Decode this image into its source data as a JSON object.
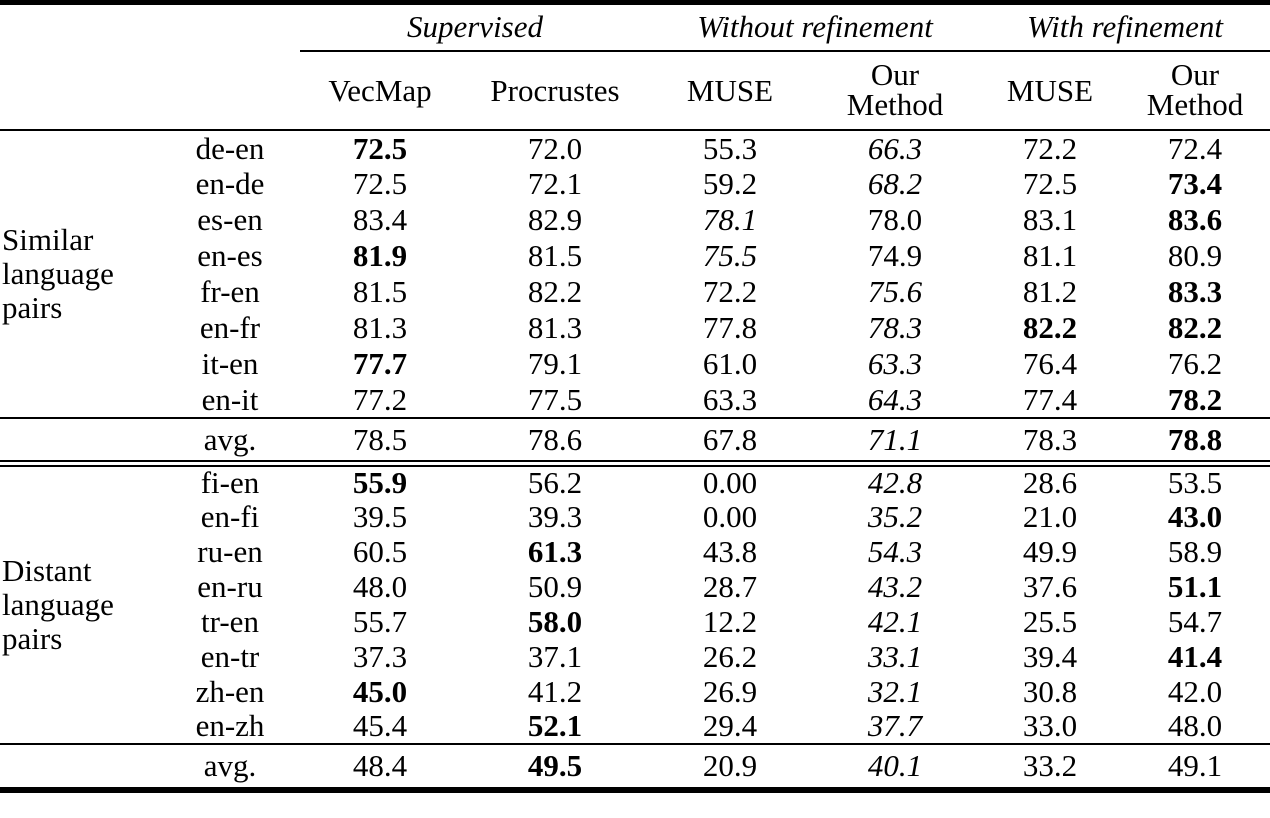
{
  "table": {
    "col_groups": [
      {
        "label": "Supervised"
      },
      {
        "label": "Without refinement"
      },
      {
        "label": "With refinement"
      }
    ],
    "headers": [
      "VecMap",
      "Procrustes",
      "MUSE",
      "Our Method",
      "MUSE",
      "Our Method"
    ],
    "sections": [
      {
        "group_label": "Similar language pairs",
        "rows": [
          {
            "pair": "de-en",
            "values": [
              "72.5",
              "72.0",
              "55.3",
              "66.3",
              "72.2",
              "72.4"
            ],
            "styles": [
              "b",
              "",
              "",
              "i",
              "",
              ""
            ]
          },
          {
            "pair": "en-de",
            "values": [
              "72.5",
              "72.1",
              "59.2",
              "68.2",
              "72.5",
              "73.4"
            ],
            "styles": [
              "",
              "",
              "",
              "i",
              "",
              "b"
            ]
          },
          {
            "pair": "es-en",
            "values": [
              "83.4",
              "82.9",
              "78.1",
              "78.0",
              "83.1",
              "83.6"
            ],
            "styles": [
              "",
              "",
              "i",
              "",
              "",
              "b"
            ]
          },
          {
            "pair": "en-es",
            "values": [
              "81.9",
              "81.5",
              "75.5",
              "74.9",
              "81.1",
              "80.9"
            ],
            "styles": [
              "b",
              "",
              "i",
              "",
              "",
              ""
            ]
          },
          {
            "pair": "fr-en",
            "values": [
              "81.5",
              "82.2",
              "72.2",
              "75.6",
              "81.2",
              "83.3"
            ],
            "styles": [
              "",
              "",
              "",
              "i",
              "",
              "b"
            ]
          },
          {
            "pair": "en-fr",
            "values": [
              "81.3",
              "81.3",
              "77.8",
              "78.3",
              "82.2",
              "82.2"
            ],
            "styles": [
              "",
              "",
              "",
              "i",
              "b",
              "b"
            ]
          },
          {
            "pair": "it-en",
            "values": [
              "77.7",
              "79.1",
              "61.0",
              "63.3",
              "76.4",
              "76.2"
            ],
            "styles": [
              "b",
              "",
              "",
              "i",
              "",
              ""
            ]
          },
          {
            "pair": "en-it",
            "values": [
              "77.2",
              "77.5",
              "63.3",
              "64.3",
              "77.4",
              "78.2"
            ],
            "styles": [
              "",
              "",
              "",
              "i",
              "",
              "b"
            ]
          }
        ],
        "avg": {
          "label": "avg.",
          "values": [
            "78.5",
            "78.6",
            "67.8",
            "71.1",
            "78.3",
            "78.8"
          ],
          "styles": [
            "",
            "",
            "",
            "i",
            "",
            "b"
          ]
        }
      },
      {
        "group_label": "Distant language pairs",
        "rows": [
          {
            "pair": "fi-en",
            "values": [
              "55.9",
              "56.2",
              "0.00",
              "42.8",
              "28.6",
              "53.5"
            ],
            "styles": [
              "b",
              "",
              "",
              "i",
              "",
              ""
            ]
          },
          {
            "pair": "en-fi",
            "values": [
              "39.5",
              "39.3",
              "0.00",
              "35.2",
              "21.0",
              "43.0"
            ],
            "styles": [
              "",
              "",
              "",
              "i",
              "",
              "b"
            ]
          },
          {
            "pair": "ru-en",
            "values": [
              "60.5",
              "61.3",
              "43.8",
              "54.3",
              "49.9",
              "58.9"
            ],
            "styles": [
              "",
              "b",
              "",
              "i",
              "",
              ""
            ]
          },
          {
            "pair": "en-ru",
            "values": [
              "48.0",
              "50.9",
              "28.7",
              "43.2",
              "37.6",
              "51.1"
            ],
            "styles": [
              "",
              "",
              "",
              "i",
              "",
              "b"
            ]
          },
          {
            "pair": "tr-en",
            "values": [
              "55.7",
              "58.0",
              "12.2",
              "42.1",
              "25.5",
              "54.7"
            ],
            "styles": [
              "",
              "b",
              "",
              "i",
              "",
              ""
            ]
          },
          {
            "pair": "en-tr",
            "values": [
              "37.3",
              "37.1",
              "26.2",
              "33.1",
              "39.4",
              "41.4"
            ],
            "styles": [
              "",
              "",
              "",
              "i",
              "",
              "b"
            ]
          },
          {
            "pair": "zh-en",
            "values": [
              "45.0",
              "41.2",
              "26.9",
              "32.1",
              "30.8",
              "42.0"
            ],
            "styles": [
              "b",
              "",
              "",
              "i",
              "",
              ""
            ]
          },
          {
            "pair": "en-zh",
            "values": [
              "45.4",
              "52.1",
              "29.4",
              "37.7",
              "33.0",
              "48.0"
            ],
            "styles": [
              "",
              "b",
              "",
              "i",
              "",
              ""
            ]
          }
        ],
        "avg": {
          "label": "avg.",
          "values": [
            "48.4",
            "49.5",
            "20.9",
            "40.1",
            "33.2",
            "49.1"
          ],
          "styles": [
            "",
            "b",
            "",
            "i",
            "",
            ""
          ]
        }
      }
    ]
  }
}
